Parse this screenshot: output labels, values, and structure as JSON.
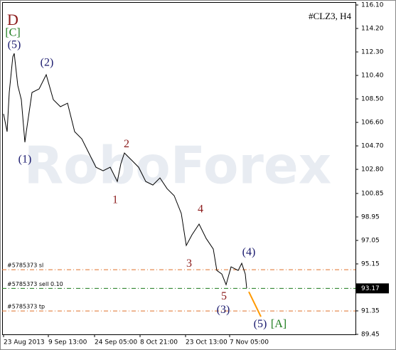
{
  "chart_data": {
    "type": "line",
    "title": "#CLZ3, H4",
    "watermark": "RoboForex",
    "color": "#000000",
    "x": [
      5,
      10,
      13,
      18,
      20,
      25,
      30,
      35,
      37,
      45,
      55,
      65,
      75,
      85,
      95,
      105,
      115,
      125,
      135,
      145,
      155,
      165,
      170,
      175,
      185,
      195,
      205,
      215,
      225,
      235,
      245,
      255,
      262,
      270,
      280,
      290,
      300,
      305,
      312,
      318,
      325,
      335,
      340,
      345,
      347
    ],
    "values": [
      107.29,
      105.85,
      109.02,
      111.9,
      112.18,
      109.59,
      108.44,
      104.99,
      105.85,
      109.02,
      109.31,
      110.46,
      108.44,
      107.87,
      108.15,
      105.85,
      105.27,
      104.12,
      102.97,
      102.68,
      102.97,
      101.82,
      103.26,
      104.12,
      103.55,
      102.97,
      101.82,
      101.53,
      102.11,
      101.24,
      100.67,
      99.23,
      96.64,
      97.5,
      98.37,
      97.21,
      96.35,
      94.62,
      94.33,
      93.47,
      94.91,
      94.62,
      95.2,
      94.33,
      93.18
    ],
    "xlim": [
      3,
      500
    ],
    "xticks": [
      {
        "value": 5,
        "label": "23 Aug 2013"
      },
      {
        "value": 68,
        "label": "9 Sep 13:00"
      },
      {
        "value": 133,
        "label": "24 Sep 05:00"
      },
      {
        "value": 197,
        "label": "8 Oct 21:00"
      },
      {
        "value": 261,
        "label": "23 Oct 13:00"
      },
      {
        "value": 323,
        "label": "7 Nov 05:00"
      }
    ],
    "ylim": [
      89.45,
      116.33
    ],
    "yticks": [
      {
        "value": 116.1,
        "label": "116.10"
      },
      {
        "value": 114.2,
        "label": "114.20"
      },
      {
        "value": 112.3,
        "label": "112.30"
      },
      {
        "value": 110.4,
        "label": "110.40"
      },
      {
        "value": 108.5,
        "label": "108.50"
      },
      {
        "value": 106.6,
        "label": "106.60"
      },
      {
        "value": 104.7,
        "label": "104.70"
      },
      {
        "value": 102.8,
        "label": "102.80"
      },
      100.85,
      98.95,
      97.05,
      95.15,
      91.35,
      89.45
    ],
    "last_price": 93.17,
    "levels": [
      {
        "label": "#5785373 sl",
        "value": 94.68,
        "color": "#e0702a"
      },
      {
        "label": "#5785373 sell 0.10",
        "value": 93.17,
        "color": "#1a7a1a"
      },
      {
        "label": "#5785373 tp",
        "value": 91.34,
        "color": "#e0702a"
      }
    ],
    "projection": {
      "x": [
        350,
        367
      ],
      "values": [
        92.89,
        90.88
      ],
      "color": "#ff9900"
    },
    "annotations": [
      {
        "text": "D",
        "x": 18,
        "y": 114.78,
        "color": "#8b1a1a"
      },
      {
        "text": "[C]",
        "x": 18,
        "y": 113.8,
        "color": "#1a7a1a"
      },
      {
        "text": "(5)",
        "x": 20,
        "y": 112.82,
        "color": "#1a1a6e"
      },
      {
        "text": "(1)",
        "x": 35,
        "y": 103.55,
        "color": "#1a1a6e"
      },
      {
        "text": "(2)",
        "x": 66,
        "y": 111.38,
        "color": "#1a1a6e"
      },
      {
        "text": "2",
        "x": 178,
        "y": 104.81,
        "color": "#8b1a1a"
      },
      {
        "text": "1",
        "x": 162,
        "y": 100.27,
        "color": "#8b1a1a"
      },
      {
        "text": "3",
        "x": 266,
        "y": 95.14,
        "color": "#8b1a1a"
      },
      {
        "text": "4",
        "x": 282,
        "y": 99.52,
        "color": "#8b1a1a"
      },
      {
        "text": "5",
        "x": 315,
        "y": 92.49,
        "color": "#8b1a1a"
      },
      {
        "text": "(3)",
        "x": 314,
        "y": 91.4,
        "color": "#1a1a6e"
      },
      {
        "text": "(4)",
        "x": 350,
        "y": 96.06,
        "color": "#1a1a6e"
      },
      {
        "text": "(5)",
        "x": 366,
        "y": 90.25,
        "color": "#1a1a6e"
      },
      {
        "text": "[A]",
        "x": 392,
        "y": 90.25,
        "color": "#1a7a1a"
      }
    ]
  }
}
